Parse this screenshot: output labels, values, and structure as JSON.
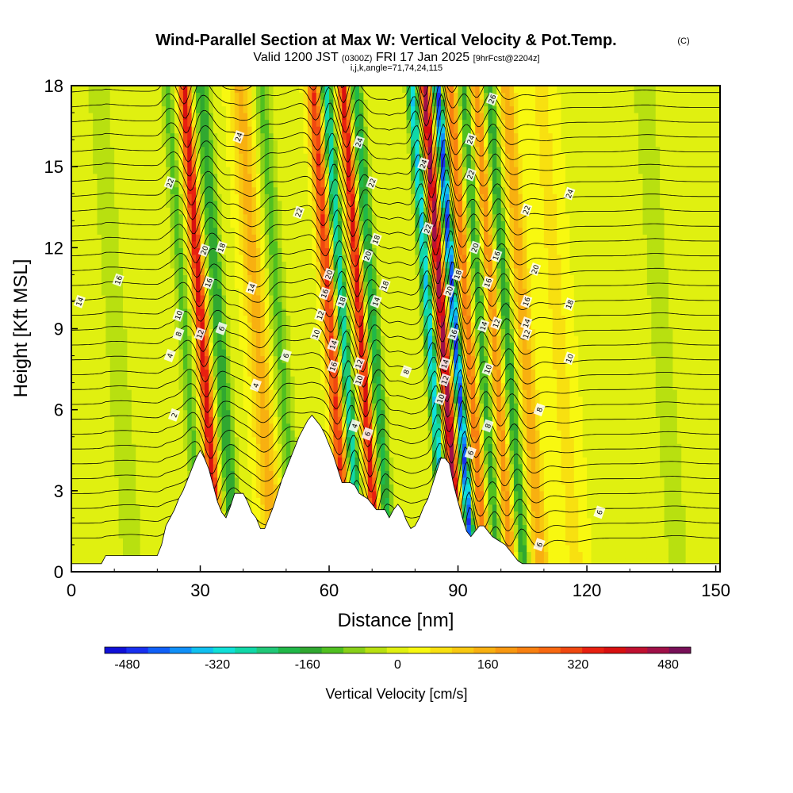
{
  "title": {
    "main": "Wind-Parallel Section at Max W: Vertical Velocity & Pot.Temp.",
    "copyright": "(C)",
    "valid_prefix": "Valid 1200 JST",
    "valid_utc": "(0300Z)",
    "valid_date": "FRI 17 Jan 2025",
    "fcst": "[9hrFcst@2204z]",
    "indices": "i,j,k,angle=71,74,24,115"
  },
  "chart_data": {
    "type": "heatmap",
    "xlabel": "Distance [nm]",
    "ylabel": "Height [Kft MSL]",
    "xlim": [
      0,
      151
    ],
    "ylim": [
      0,
      18
    ],
    "x_ticks": [
      "0",
      "30",
      "60",
      "90",
      "120",
      "150"
    ],
    "y_ticks": [
      "0",
      "3",
      "6",
      "9",
      "12",
      "15",
      "18"
    ],
    "colorbar": {
      "label": "Vertical Velocity [cm/s]",
      "tick_labels": [
        "-480",
        "-320",
        "-160",
        "0",
        "160",
        "320",
        "480"
      ],
      "range": [
        -520,
        520
      ],
      "colors": [
        "#1010d8",
        "#1830f0",
        "#1060f8",
        "#1090f8",
        "#10c0f0",
        "#10e0d8",
        "#10d8a8",
        "#20c878",
        "#20b848",
        "#30a830",
        "#50c020",
        "#88d018",
        "#b8e010",
        "#e0f010",
        "#f8f810",
        "#f8e010",
        "#f8c810",
        "#f8b010",
        "#f89810",
        "#f88010",
        "#f86810",
        "#f04810",
        "#e82010",
        "#d81010",
        "#c01030",
        "#a01048",
        "#781058"
      ]
    },
    "terrain_profile": {
      "x": [
        0,
        7,
        8,
        20,
        21,
        22,
        23,
        24,
        25,
        26,
        27,
        28,
        29,
        30,
        31,
        32,
        33,
        34,
        35,
        36,
        37,
        38,
        39,
        40,
        41,
        42,
        43,
        44,
        45,
        46,
        47,
        48,
        49,
        50,
        51,
        52,
        53,
        54,
        55,
        56,
        57,
        58,
        59,
        60,
        61,
        62,
        63,
        64,
        65,
        66,
        67,
        68,
        69,
        70,
        71,
        72,
        73,
        74,
        75,
        76,
        77,
        78,
        79,
        80,
        81,
        82,
        83,
        84,
        85,
        86,
        87,
        88,
        89,
        90,
        91,
        92,
        93,
        94,
        95,
        96,
        97,
        98,
        99,
        100,
        101,
        102,
        103,
        104,
        105,
        106,
        107,
        108,
        151
      ],
      "y": [
        0.3,
        0.3,
        0.6,
        0.6,
        1.0,
        1.7,
        2.0,
        2.3,
        2.7,
        3.0,
        3.4,
        3.8,
        4.2,
        4.5,
        4.2,
        3.8,
        3.2,
        2.6,
        2.2,
        2.0,
        2.4,
        2.9,
        2.9,
        2.9,
        2.6,
        2.2,
        2.0,
        1.6,
        1.6,
        2.0,
        2.4,
        2.9,
        3.4,
        3.8,
        4.2,
        4.6,
        5.0,
        5.3,
        5.6,
        5.8,
        5.6,
        5.4,
        5.1,
        4.7,
        4.3,
        3.8,
        3.3,
        3.3,
        3.3,
        3.2,
        2.9,
        2.8,
        2.7,
        2.5,
        2.3,
        2.3,
        2.3,
        2.0,
        2.3,
        2.5,
        2.3,
        1.9,
        1.6,
        1.7,
        2.0,
        2.4,
        2.7,
        3.2,
        3.7,
        4.2,
        4.2,
        4.0,
        3.2,
        2.6,
        2.0,
        1.5,
        1.3,
        1.5,
        1.7,
        1.7,
        1.5,
        1.3,
        1.2,
        1.1,
        1.0,
        0.8,
        0.6,
        0.4,
        0.3,
        0.3,
        0.3,
        0.3,
        0.3
      ]
    },
    "isentrope_labels": [
      {
        "text": "14",
        "x": 2,
        "y": 10.0
      },
      {
        "text": "16",
        "x": 11,
        "y": 10.8
      },
      {
        "text": "22",
        "x": 23,
        "y": 14.4
      },
      {
        "text": "24",
        "x": 39,
        "y": 16.1
      },
      {
        "text": "20",
        "x": 31,
        "y": 11.9
      },
      {
        "text": "18",
        "x": 35,
        "y": 12.0
      },
      {
        "text": "16",
        "x": 32,
        "y": 10.7
      },
      {
        "text": "10",
        "x": 25,
        "y": 9.5
      },
      {
        "text": "8",
        "x": 25,
        "y": 8.8
      },
      {
        "text": "12",
        "x": 30,
        "y": 8.8
      },
      {
        "text": "6",
        "x": 35,
        "y": 9.0
      },
      {
        "text": "4",
        "x": 23,
        "y": 8.0
      },
      {
        "text": "2",
        "x": 24,
        "y": 5.8
      },
      {
        "text": "14",
        "x": 42,
        "y": 10.5
      },
      {
        "text": "4",
        "x": 43,
        "y": 6.9
      },
      {
        "text": "6",
        "x": 50,
        "y": 8.0
      },
      {
        "text": "22",
        "x": 53,
        "y": 13.3
      },
      {
        "text": "10",
        "x": 57,
        "y": 8.8
      },
      {
        "text": "12",
        "x": 58,
        "y": 9.5
      },
      {
        "text": "16",
        "x": 59,
        "y": 10.3
      },
      {
        "text": "20",
        "x": 60,
        "y": 11.0
      },
      {
        "text": "14",
        "x": 61,
        "y": 8.4
      },
      {
        "text": "18",
        "x": 63,
        "y": 10.0
      },
      {
        "text": "16",
        "x": 61,
        "y": 7.6
      },
      {
        "text": "24",
        "x": 67,
        "y": 15.9
      },
      {
        "text": "22",
        "x": 70,
        "y": 14.4
      },
      {
        "text": "18",
        "x": 71,
        "y": 12.3
      },
      {
        "text": "20",
        "x": 69,
        "y": 11.7
      },
      {
        "text": "18",
        "x": 73,
        "y": 10.6
      },
      {
        "text": "14",
        "x": 71,
        "y": 10.0
      },
      {
        "text": "12",
        "x": 67,
        "y": 7.7
      },
      {
        "text": "10",
        "x": 67,
        "y": 7.1
      },
      {
        "text": "4",
        "x": 66,
        "y": 5.4
      },
      {
        "text": "6",
        "x": 69,
        "y": 5.1
      },
      {
        "text": "8",
        "x": 78,
        "y": 7.4
      },
      {
        "text": "24",
        "x": 82,
        "y": 15.1
      },
      {
        "text": "22",
        "x": 83,
        "y": 12.7
      },
      {
        "text": "20",
        "x": 88,
        "y": 10.4
      },
      {
        "text": "18",
        "x": 90,
        "y": 11.0
      },
      {
        "text": "16",
        "x": 89,
        "y": 8.8
      },
      {
        "text": "14",
        "x": 87,
        "y": 7.7
      },
      {
        "text": "12",
        "x": 87,
        "y": 7.1
      },
      {
        "text": "10",
        "x": 86,
        "y": 6.4
      },
      {
        "text": "26",
        "x": 98,
        "y": 17.5
      },
      {
        "text": "24",
        "x": 93,
        "y": 16.0
      },
      {
        "text": "22",
        "x": 93,
        "y": 14.7
      },
      {
        "text": "20",
        "x": 94,
        "y": 12.0
      },
      {
        "text": "16",
        "x": 97,
        "y": 10.7
      },
      {
        "text": "16",
        "x": 99,
        "y": 11.7
      },
      {
        "text": "14",
        "x": 96,
        "y": 9.1
      },
      {
        "text": "12",
        "x": 99,
        "y": 9.2
      },
      {
        "text": "10",
        "x": 97,
        "y": 7.5
      },
      {
        "text": "8",
        "x": 97,
        "y": 5.4
      },
      {
        "text": "6",
        "x": 93,
        "y": 4.4
      },
      {
        "text": "22",
        "x": 106,
        "y": 13.4
      },
      {
        "text": "20",
        "x": 108,
        "y": 11.2
      },
      {
        "text": "16",
        "x": 106,
        "y": 10.0
      },
      {
        "text": "14",
        "x": 106,
        "y": 9.2
      },
      {
        "text": "12",
        "x": 106,
        "y": 8.8
      },
      {
        "text": "8",
        "x": 109,
        "y": 6.0
      },
      {
        "text": "24",
        "x": 116,
        "y": 14.0
      },
      {
        "text": "18",
        "x": 116,
        "y": 9.9
      },
      {
        "text": "10",
        "x": 116,
        "y": 7.9
      },
      {
        "text": "6",
        "x": 109,
        "y": 1.0
      },
      {
        "text": "6",
        "x": 123,
        "y": 2.2
      }
    ]
  }
}
